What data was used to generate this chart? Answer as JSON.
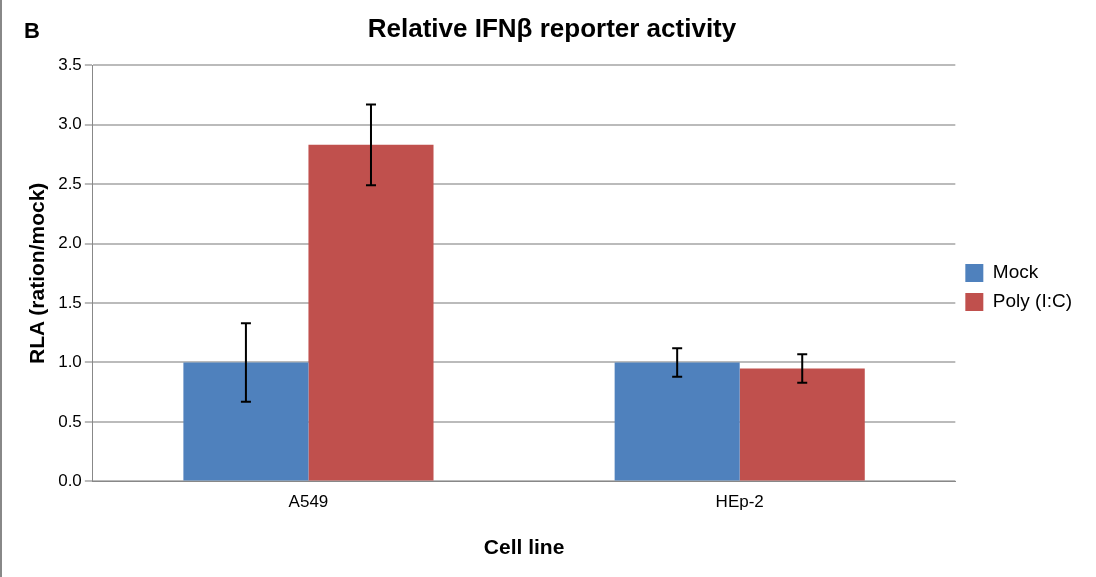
{
  "chart_data": {
    "type": "bar",
    "title": "Relative IFNβ reporter activity",
    "xlabel": "Cell line",
    "ylabel": "RLA (ration/mock)",
    "annotations": [
      "B"
    ],
    "categories": [
      "A549",
      "HEp-2"
    ],
    "series": [
      {
        "name": "Mock",
        "color": "#4f81bd",
        "values": [
          1.0,
          1.0
        ],
        "errors": [
          0.33,
          0.12
        ]
      },
      {
        "name": "Poly (I:C)",
        "color": "#c0504d",
        "values": [
          2.83,
          0.95
        ],
        "errors": [
          0.34,
          0.12
        ]
      }
    ],
    "ylim": [
      0,
      3.5
    ],
    "yticks": [
      {
        "value": 0,
        "label": "0.0"
      },
      {
        "value": 0.5,
        "label": "0.5"
      },
      {
        "value": 1,
        "label": "1.0"
      },
      {
        "value": 1.5,
        "label": "1.5"
      },
      {
        "value": 2,
        "label": "2.0"
      },
      {
        "value": 2.5,
        "label": "2.5"
      },
      {
        "value": 3,
        "label": "3.0"
      },
      {
        "value": 3.5,
        "label": "3.5"
      }
    ],
    "grid": "y",
    "legend": "right"
  }
}
